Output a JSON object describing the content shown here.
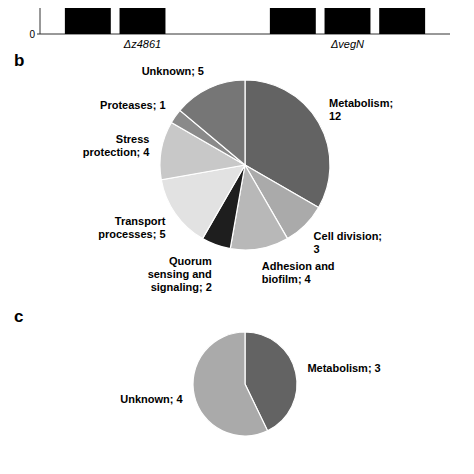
{
  "chart_data": [
    {
      "type": "bar",
      "categories": [
        "Δz4861",
        "ΔvegN"
      ],
      "series": [
        {
          "values": [
            1,
            1
          ]
        },
        {
          "values": [
            1,
            1
          ]
        },
        {
          "values": [
            null,
            1
          ]
        }
      ],
      "color": "#000000",
      "ylim": [
        0,
        1
      ],
      "yticks": [
        0
      ]
    },
    {
      "type": "pie",
      "title": "b",
      "categories": [
        "Metabolism;\n12",
        "Cell division;\n3",
        "Adhesion and\nbiofilm; 4",
        "Quorum\nsensing and\nsignaling; 2",
        "Transport\nprocesses; 5",
        "Stress\nprotection; 4",
        "Proteases; 1",
        "Unknown; 5"
      ],
      "values": [
        12,
        3,
        4,
        2,
        5,
        4,
        1,
        5
      ],
      "colors": [
        "#636363",
        "#aaaaaa",
        "#b8b8b8",
        "#1e1e1e",
        "#e2e2e2",
        "#c8c8c8",
        "#8a8a8a",
        "#767676"
      ]
    },
    {
      "type": "pie",
      "title": "c",
      "categories": [
        "Metabolism; 3",
        "Unknown; 4"
      ],
      "values": [
        3,
        4
      ],
      "colors": [
        "#636363",
        "#aaaaaa"
      ]
    }
  ]
}
